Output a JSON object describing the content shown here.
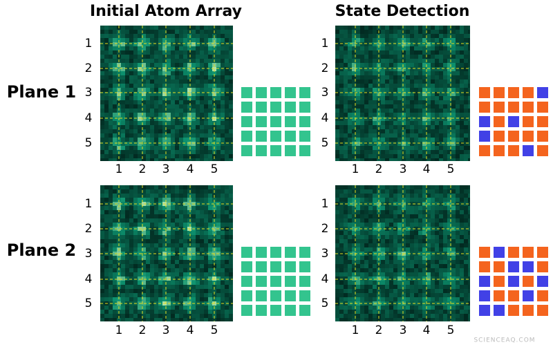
{
  "columns": [
    "Initial Atom Array",
    "State Detection"
  ],
  "planes": [
    "Plane 1",
    "Plane 2"
  ],
  "ticks": [
    "1",
    "2",
    "3",
    "4",
    "5"
  ],
  "initial_color": "#33c48e",
  "state_colors": {
    "o": "#f4641e",
    "b": "#4141e6"
  },
  "state_grids": [
    [
      [
        "o",
        "o",
        "o",
        "o",
        "b"
      ],
      [
        "o",
        "o",
        "o",
        "o",
        "o"
      ],
      [
        "b",
        "o",
        "b",
        "o",
        "o"
      ],
      [
        "b",
        "o",
        "o",
        "o",
        "o"
      ],
      [
        "o",
        "o",
        "o",
        "b",
        "o"
      ]
    ],
    [
      [
        "o",
        "b",
        "o",
        "o",
        "o"
      ],
      [
        "o",
        "o",
        "b",
        "b",
        "o"
      ],
      [
        "b",
        "o",
        "b",
        "o",
        "b"
      ],
      [
        "b",
        "o",
        "o",
        "b",
        "o"
      ],
      [
        "b",
        "b",
        "o",
        "o",
        "o"
      ]
    ]
  ],
  "watermark": "SCIENCEAQ.COM"
}
